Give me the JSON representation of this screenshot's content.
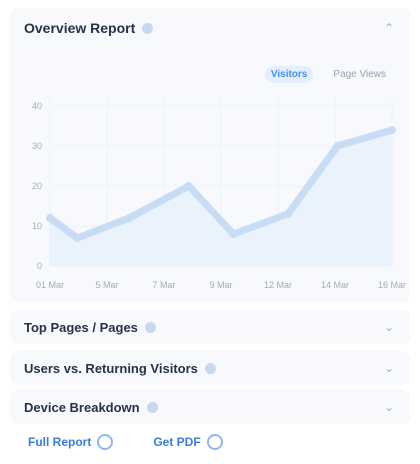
{
  "overview": {
    "title": "Overview Report",
    "toggle": {
      "active": "Visitors",
      "inactive": "Page Views"
    }
  },
  "chart_data": {
    "type": "area",
    "categories": [
      "01 Mar",
      "5 Mar",
      "7 Mar",
      "9 Mar",
      "12 Mar",
      "14 Mar",
      "16 Mar"
    ],
    "series": [
      {
        "values": [
          12,
          7,
          12,
          20,
          8,
          13,
          30,
          34
        ]
      }
    ],
    "x": [
      0,
      0.55,
      1.6,
      2.8,
      3.7,
      4.8,
      5.8,
      6.9
    ],
    "y_ticks": [
      "0",
      "10",
      "20",
      "30",
      "40"
    ],
    "ylim": [
      0,
      42
    ],
    "grid": true,
    "color": "#c8dcf5"
  },
  "rows": [
    {
      "title": "Top Pages / Pages"
    },
    {
      "title": "Users vs. Returning Visitors"
    },
    {
      "title": "Device Breakdown"
    }
  ],
  "footer": {
    "link1": "Full Report",
    "link2": "Get PDF"
  }
}
